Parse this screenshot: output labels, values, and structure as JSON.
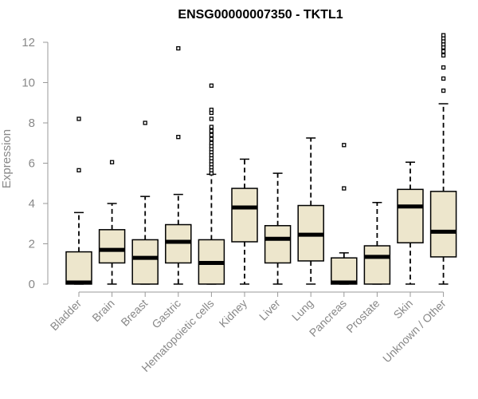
{
  "chart_data": {
    "type": "box",
    "title": "ENSG00000007350 - TKTL1",
    "xlabel": "",
    "ylabel": "Expression",
    "ylim": [
      0,
      12
    ],
    "yticks": [
      0,
      2,
      4,
      6,
      8,
      10,
      12
    ],
    "categories": [
      "Bladder",
      "Brain",
      "Breast",
      "Gastric",
      "Hematopoietic cells",
      "Kidney",
      "Liver",
      "Lung",
      "Pancreas",
      "Prostate",
      "Skin",
      "Unknown / Other"
    ],
    "boxes": [
      {
        "low": 0.0,
        "q1": 0.0,
        "median": 0.05,
        "q3": 1.6,
        "high": 3.55,
        "outliers": [
          5.65,
          8.2
        ]
      },
      {
        "low": 0.0,
        "q1": 1.05,
        "median": 1.7,
        "q3": 2.7,
        "high": 4.0,
        "outliers": [
          6.05
        ]
      },
      {
        "low": 0.0,
        "q1": 0.0,
        "median": 1.3,
        "q3": 2.2,
        "high": 4.35,
        "outliers": [
          8.0
        ]
      },
      {
        "low": 0.0,
        "q1": 1.05,
        "median": 2.1,
        "q3": 2.95,
        "high": 4.45,
        "outliers": [
          7.3,
          11.7
        ]
      },
      {
        "low": 0.0,
        "q1": 0.0,
        "median": 1.05,
        "q3": 2.2,
        "high": 5.45,
        "outliers": [
          5.5,
          5.65,
          5.8,
          5.95,
          6.1,
          6.25,
          6.4,
          6.55,
          6.7,
          6.85,
          7.0,
          7.2,
          7.4,
          7.6,
          7.8,
          8.2,
          8.5,
          8.65,
          9.85
        ]
      },
      {
        "low": 0.0,
        "q1": 2.1,
        "median": 3.8,
        "q3": 4.75,
        "high": 6.2,
        "outliers": []
      },
      {
        "low": 0.0,
        "q1": 1.05,
        "median": 2.25,
        "q3": 2.9,
        "high": 5.5,
        "outliers": []
      },
      {
        "low": 0.0,
        "q1": 1.15,
        "median": 2.45,
        "q3": 3.9,
        "high": 7.25,
        "outliers": []
      },
      {
        "low": 0.0,
        "q1": 0.0,
        "median": 0.05,
        "q3": 1.3,
        "high": 1.55,
        "outliers": [
          4.75,
          6.9
        ]
      },
      {
        "low": 0.0,
        "q1": 0.0,
        "median": 1.35,
        "q3": 1.9,
        "high": 4.05,
        "outliers": []
      },
      {
        "low": 0.0,
        "q1": 2.05,
        "median": 3.85,
        "q3": 4.7,
        "high": 6.05,
        "outliers": []
      },
      {
        "low": 0.0,
        "q1": 1.35,
        "median": 2.6,
        "q3": 4.6,
        "high": 8.95,
        "outliers": [
          9.6,
          10.2,
          10.75,
          11.35,
          11.55,
          11.75,
          11.9,
          12.05,
          12.2,
          12.35
        ]
      }
    ]
  }
}
